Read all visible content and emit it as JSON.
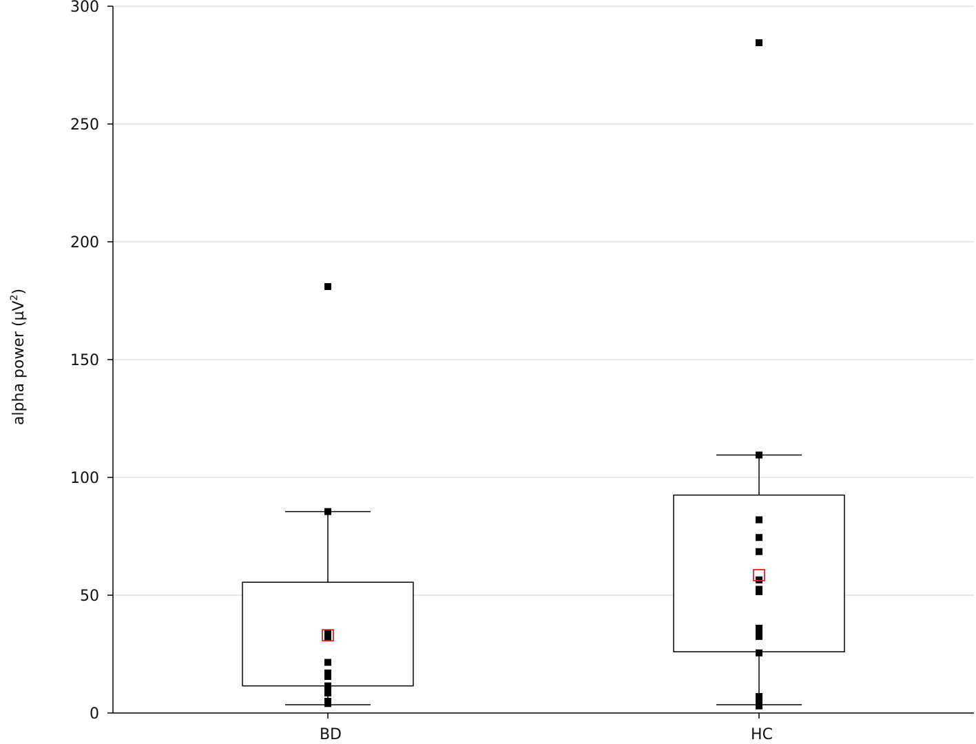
{
  "chart_data": {
    "type": "box",
    "title": "",
    "ylabel": "alpha power (µV²)",
    "ylabel_main": "alpha power (µV",
    "ylabel_sup": "2",
    "ylabel_close": ")",
    "xlabel": "",
    "ylim": [
      0,
      300
    ],
    "yticks": [
      0,
      50,
      100,
      150,
      200,
      250,
      300
    ],
    "ytick_labels": [
      "0",
      "50",
      "100",
      "150",
      "200",
      "250",
      "300"
    ],
    "grid": "horizontal",
    "categories": [
      "BD",
      "HC"
    ],
    "groups": [
      {
        "name": "BD",
        "whisker_low": 3.5,
        "q1": 11.5,
        "q3": 55.5,
        "whisker_high": 85.5,
        "mean": 33,
        "points": [
          181,
          85.5,
          34,
          32,
          21.5,
          17,
          15.5,
          11.5,
          10.5,
          8.5,
          5,
          4
        ]
      },
      {
        "name": "HC",
        "whisker_low": 3.5,
        "q1": 26,
        "q3": 92.5,
        "whisker_high": 109.5,
        "mean": 58.5,
        "points": [
          284.5,
          109.5,
          82,
          74.5,
          68.5,
          56.5,
          52.5,
          51.5,
          36,
          33.5,
          32.5,
          25.5,
          7,
          5.5,
          3
        ]
      }
    ],
    "colors": {
      "box_stroke": "#000000",
      "point": "#000000",
      "mean_marker": "#e8201c",
      "grid": "#d9d9d9",
      "axis": "#000000"
    }
  }
}
